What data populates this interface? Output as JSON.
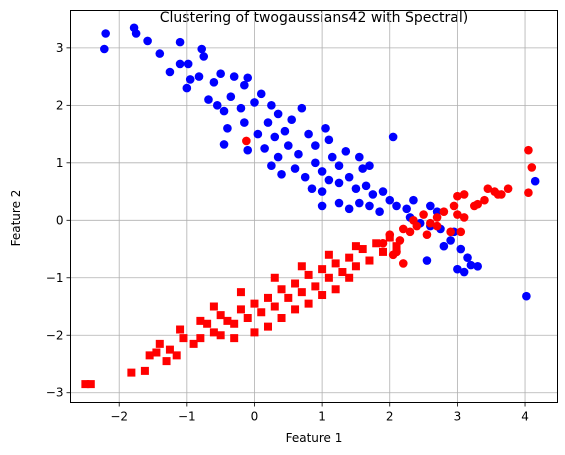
{
  "chart_data": {
    "type": "scatter",
    "title": "Clustering of twogaussians42 with Spectral)",
    "xlabel": "Feature 1",
    "ylabel": "Feature 2",
    "xlim": [
      -2.72,
      4.48
    ],
    "ylim": [
      -3.17,
      3.65
    ],
    "xticks": [
      -2,
      -1,
      0,
      1,
      2,
      3,
      4
    ],
    "yticks": [
      -3,
      -2,
      -1,
      0,
      1,
      2,
      3
    ],
    "grid": true,
    "colors": {
      "blue": "#0000ff",
      "red": "#ff0000"
    },
    "series": [
      {
        "marker": "circle",
        "color": "#0000ff",
        "points": [
          [
            -2.2,
            3.25
          ],
          [
            -2.22,
            2.98
          ],
          [
            -1.78,
            3.35
          ],
          [
            -1.75,
            3.25
          ],
          [
            -1.58,
            3.12
          ],
          [
            -1.4,
            2.9
          ],
          [
            -1.1,
            3.1
          ],
          [
            -1.1,
            2.72
          ],
          [
            -0.98,
            2.72
          ],
          [
            -0.78,
            2.98
          ],
          [
            -0.75,
            2.85
          ],
          [
            -1.25,
            2.58
          ],
          [
            -0.95,
            2.45
          ],
          [
            -1.0,
            2.3
          ],
          [
            -0.82,
            2.5
          ],
          [
            -0.6,
            2.4
          ],
          [
            -0.5,
            2.55
          ],
          [
            -0.3,
            2.5
          ],
          [
            -0.1,
            2.48
          ],
          [
            -0.15,
            2.35
          ],
          [
            -0.68,
            2.1
          ],
          [
            -0.55,
            2.0
          ],
          [
            -0.35,
            2.15
          ],
          [
            -0.45,
            1.9
          ],
          [
            -0.2,
            1.95
          ],
          [
            0.0,
            2.05
          ],
          [
            0.1,
            2.2
          ],
          [
            0.25,
            2.0
          ],
          [
            -0.4,
            1.6
          ],
          [
            -0.15,
            1.7
          ],
          [
            -0.45,
            1.32
          ],
          [
            0.05,
            1.5
          ],
          [
            0.2,
            1.7
          ],
          [
            0.35,
            1.85
          ],
          [
            0.45,
            1.55
          ],
          [
            0.55,
            1.75
          ],
          [
            0.7,
            1.95
          ],
          [
            -0.1,
            1.22
          ],
          [
            0.15,
            1.25
          ],
          [
            0.3,
            1.45
          ],
          [
            0.35,
            1.1
          ],
          [
            0.5,
            1.3
          ],
          [
            0.65,
            1.15
          ],
          [
            0.8,
            1.5
          ],
          [
            0.9,
            1.3
          ],
          [
            1.05,
            1.6
          ],
          [
            1.1,
            1.4
          ],
          [
            0.25,
            0.95
          ],
          [
            0.4,
            0.8
          ],
          [
            0.6,
            0.9
          ],
          [
            0.75,
            0.75
          ],
          [
            0.9,
            1.0
          ],
          [
            1.0,
            0.85
          ],
          [
            1.15,
            1.1
          ],
          [
            1.25,
            0.95
          ],
          [
            1.35,
            1.2
          ],
          [
            1.55,
            1.1
          ],
          [
            1.6,
            0.9
          ],
          [
            1.7,
            0.95
          ],
          [
            0.85,
            0.55
          ],
          [
            1.0,
            0.5
          ],
          [
            1.1,
            0.7
          ],
          [
            1.25,
            0.65
          ],
          [
            1.4,
            0.75
          ],
          [
            1.5,
            0.55
          ],
          [
            1.65,
            0.6
          ],
          [
            1.75,
            0.45
          ],
          [
            1.9,
            0.5
          ],
          [
            1.0,
            0.25
          ],
          [
            1.25,
            0.3
          ],
          [
            1.4,
            0.2
          ],
          [
            1.55,
            0.3
          ],
          [
            1.7,
            0.25
          ],
          [
            1.85,
            0.15
          ],
          [
            2.0,
            0.35
          ],
          [
            2.1,
            0.25
          ],
          [
            2.25,
            0.2
          ],
          [
            2.35,
            0.35
          ],
          [
            2.6,
            0.25
          ],
          [
            2.7,
            0.15
          ],
          [
            2.3,
            0.05
          ],
          [
            2.45,
            -0.05
          ],
          [
            2.6,
            -0.1
          ],
          [
            2.75,
            -0.15
          ],
          [
            2.95,
            -0.2
          ],
          [
            2.9,
            -0.35
          ],
          [
            3.05,
            -0.5
          ],
          [
            2.8,
            -0.45
          ],
          [
            3.15,
            -0.65
          ],
          [
            3.2,
            -0.78
          ],
          [
            3.3,
            -0.8
          ],
          [
            3.0,
            -0.85
          ],
          [
            3.1,
            -0.9
          ],
          [
            4.02,
            -1.32
          ],
          [
            4.15,
            0.68
          ],
          [
            2.55,
            -0.7
          ],
          [
            2.05,
            1.45
          ]
        ]
      },
      {
        "marker": "circle",
        "color": "#ff0000",
        "points": [
          [
            -0.12,
            1.38
          ],
          [
            4.05,
            1.22
          ],
          [
            4.1,
            0.92
          ],
          [
            4.05,
            0.48
          ],
          [
            3.75,
            0.55
          ],
          [
            3.65,
            0.45
          ],
          [
            3.55,
            0.5
          ],
          [
            3.4,
            0.35
          ],
          [
            3.3,
            0.28
          ],
          [
            3.1,
            0.45
          ],
          [
            3.0,
            0.42
          ],
          [
            2.95,
            0.25
          ],
          [
            3.1,
            0.05
          ],
          [
            3.05,
            -0.2
          ],
          [
            2.8,
            0.15
          ],
          [
            2.7,
            0.05
          ],
          [
            2.6,
            -0.05
          ],
          [
            2.5,
            0.1
          ],
          [
            2.4,
            -0.1
          ],
          [
            2.3,
            -0.2
          ],
          [
            2.2,
            -0.15
          ],
          [
            2.15,
            -0.35
          ],
          [
            2.0,
            -0.25
          ],
          [
            1.9,
            -0.4
          ],
          [
            2.05,
            -0.6
          ],
          [
            2.2,
            -0.75
          ],
          [
            2.1,
            -0.55
          ],
          [
            2.35,
            0.0
          ],
          [
            2.55,
            -0.25
          ],
          [
            2.7,
            -0.1
          ],
          [
            3.6,
            0.45
          ],
          [
            3.45,
            0.55
          ],
          [
            3.25,
            0.25
          ],
          [
            2.9,
            -0.2
          ],
          [
            3.0,
            0.1
          ]
        ]
      },
      {
        "marker": "square",
        "color": "#ff0000",
        "points": [
          [
            -2.5,
            -2.85
          ],
          [
            -2.42,
            -2.85
          ],
          [
            -1.82,
            -2.65
          ],
          [
            -1.62,
            -2.62
          ],
          [
            -1.55,
            -2.35
          ],
          [
            -1.45,
            -2.3
          ],
          [
            -1.4,
            -2.15
          ],
          [
            -1.3,
            -2.45
          ],
          [
            -1.25,
            -2.25
          ],
          [
            -1.15,
            -2.35
          ],
          [
            -1.1,
            -1.9
          ],
          [
            -1.05,
            -2.05
          ],
          [
            -0.9,
            -2.15
          ],
          [
            -0.8,
            -2.05
          ],
          [
            -0.7,
            -1.8
          ],
          [
            -0.6,
            -1.95
          ],
          [
            -0.5,
            -1.65
          ],
          [
            -0.4,
            -1.75
          ],
          [
            -0.3,
            -1.8
          ],
          [
            -0.2,
            -1.55
          ],
          [
            -0.1,
            -1.7
          ],
          [
            0.0,
            -1.45
          ],
          [
            0.1,
            -1.6
          ],
          [
            0.2,
            -1.35
          ],
          [
            0.3,
            -1.5
          ],
          [
            0.4,
            -1.2
          ],
          [
            0.5,
            -1.35
          ],
          [
            0.6,
            -1.1
          ],
          [
            0.7,
            -1.25
          ],
          [
            0.8,
            -0.95
          ],
          [
            0.9,
            -1.15
          ],
          [
            1.0,
            -0.85
          ],
          [
            1.1,
            -1.0
          ],
          [
            1.2,
            -0.75
          ],
          [
            1.3,
            -0.9
          ],
          [
            1.4,
            -0.65
          ],
          [
            1.5,
            -0.8
          ],
          [
            1.6,
            -0.5
          ],
          [
            1.7,
            -0.7
          ],
          [
            1.8,
            -0.4
          ],
          [
            1.9,
            -0.55
          ],
          [
            2.0,
            -0.3
          ],
          [
            2.1,
            -0.45
          ],
          [
            0.2,
            -1.85
          ],
          [
            0.4,
            -1.7
          ],
          [
            0.6,
            -1.55
          ],
          [
            0.8,
            -1.45
          ],
          [
            1.0,
            -1.3
          ],
          [
            1.2,
            -1.2
          ],
          [
            1.4,
            -1.0
          ],
          [
            -0.5,
            -2.0
          ],
          [
            -0.3,
            -2.05
          ],
          [
            0.0,
            -1.95
          ],
          [
            -0.8,
            -1.75
          ],
          [
            -0.6,
            -1.5
          ],
          [
            -0.2,
            -1.25
          ],
          [
            0.3,
            -1.0
          ],
          [
            0.7,
            -0.8
          ],
          [
            1.1,
            -0.6
          ],
          [
            1.5,
            -0.45
          ]
        ]
      }
    ]
  }
}
